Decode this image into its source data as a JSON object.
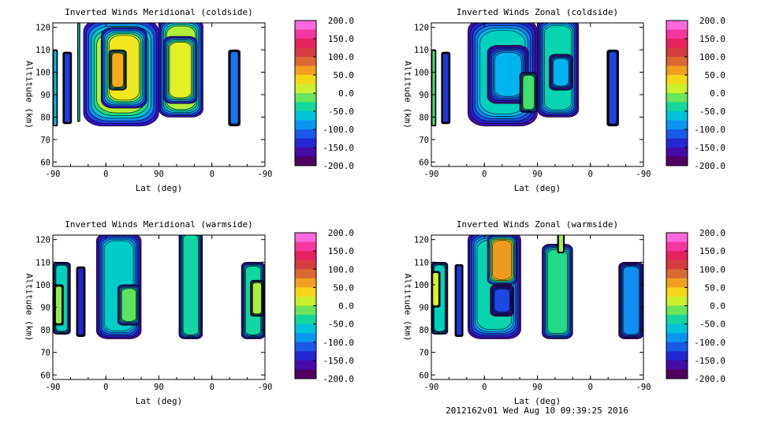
{
  "footer": "2012162v01 Wed Aug 10 09:39:25 2016",
  "chart_data": [
    {
      "type": "heatmap",
      "title": "Inverted Winds Meridional (coldside)",
      "xlabel": "Lat (deg)",
      "ylabel": "Altitude (km)",
      "x_ticks": [
        "-90",
        "0",
        "90",
        "0",
        "-90"
      ],
      "y_ticks": [
        "60",
        "70",
        "80",
        "90",
        "100",
        "110",
        "120"
      ],
      "ylim": [
        58,
        122
      ],
      "colorbar": {
        "min": -200.0,
        "max": 200.0,
        "tick_labels": [
          "200.0",
          "150.0",
          "100.0",
          "50.0",
          "0.0",
          "-50.0",
          "-100.0",
          "-150.0",
          "-200.0"
        ]
      },
      "blobs": [
        {
          "x0": -90,
          "x1": -82,
          "z0": 76,
          "z1": 110,
          "v": -70
        },
        {
          "x0": -73,
          "x1": -58,
          "z0": 77,
          "z1": 109,
          "v": -125
        },
        {
          "x0": -48,
          "x1": -44,
          "z0": 78,
          "z1": 128,
          "v": -50
        },
        {
          "x0": -38,
          "x1": 90,
          "z0": 76,
          "z1": 124,
          "v": 5
        },
        {
          "x0": -8,
          "x1": 70,
          "z0": 84,
          "z1": 120,
          "v": 30
        },
        {
          "x0": 5,
          "x1": 35,
          "z0": 92,
          "z1": 110,
          "v": 58
        },
        {
          "x0": 90,
          "x1": 165,
          "z0": 80,
          "z1": 124,
          "v": 2
        },
        {
          "x0": 98,
          "x1": 155,
          "z0": 86,
          "z1": 116,
          "v": 20
        },
        {
          "x0": 208,
          "x1": 228,
          "z0": 76,
          "z1": 110,
          "v": -100
        }
      ]
    },
    {
      "type": "heatmap",
      "title": "Inverted Winds Zonal (coldside)",
      "xlabel": "Lat (deg)",
      "ylabel": "Altitude (km)",
      "x_ticks": [
        "-90",
        "0",
        "90",
        "0",
        "-90"
      ],
      "y_ticks": [
        "60",
        "70",
        "80",
        "90",
        "100",
        "110",
        "120"
      ],
      "ylim": [
        58,
        122
      ],
      "colorbar": {
        "min": -200.0,
        "max": 200.0,
        "tick_labels": [
          "200.0",
          "150.0",
          "100.0",
          "50.0",
          "0.0",
          "-50.0",
          "-100.0",
          "-150.0",
          "-200.0"
        ]
      },
      "blobs": [
        {
          "x0": -90,
          "x1": -82,
          "z0": 76,
          "z1": 110,
          "v": -20
        },
        {
          "x0": -73,
          "x1": -58,
          "z0": 77,
          "z1": 109,
          "v": -130
        },
        {
          "x0": -28,
          "x1": 90,
          "z0": 76,
          "z1": 124,
          "v": -50
        },
        {
          "x0": 5,
          "x1": 75,
          "z0": 86,
          "z1": 112,
          "v": -75
        },
        {
          "x0": 60,
          "x1": 90,
          "z0": 82,
          "z1": 100,
          "v": -20
        },
        {
          "x0": 90,
          "x1": 160,
          "z0": 80,
          "z1": 124,
          "v": -45
        },
        {
          "x0": 110,
          "x1": 150,
          "z0": 92,
          "z1": 108,
          "v": -75
        },
        {
          "x0": 208,
          "x1": 228,
          "z0": 76,
          "z1": 110,
          "v": -120
        }
      ]
    },
    {
      "type": "heatmap",
      "title": "Inverted Winds Meridional (warmside)",
      "xlabel": "Lat (deg)",
      "ylabel": "Altitude (km)",
      "x_ticks": [
        "-90",
        "0",
        "90",
        "0",
        "-90"
      ],
      "y_ticks": [
        "60",
        "70",
        "80",
        "90",
        "100",
        "110",
        "120"
      ],
      "ylim": [
        58,
        122
      ],
      "colorbar": {
        "min": -200.0,
        "max": 200.0,
        "tick_labels": [
          "200.0",
          "150.0",
          "100.0",
          "50.0",
          "0.0",
          "-50.0",
          "-100.0",
          "-150.0",
          "-200.0"
        ]
      },
      "blobs": [
        {
          "x0": -90,
          "x1": -60,
          "z0": 78,
          "z1": 110,
          "v": -50
        },
        {
          "x0": -88,
          "x1": -72,
          "z0": 82,
          "z1": 100,
          "v": -5
        },
        {
          "x0": -50,
          "x1": -35,
          "z0": 77,
          "z1": 108,
          "v": -140
        },
        {
          "x0": -16,
          "x1": 60,
          "z0": 76,
          "z1": 123,
          "v": -55
        },
        {
          "x0": 20,
          "x1": 58,
          "z0": 82,
          "z1": 100,
          "v": -15
        },
        {
          "x0": 124,
          "x1": 164,
          "z0": 76,
          "z1": 124,
          "v": -40
        },
        {
          "x0": 230,
          "x1": 270,
          "z0": 76,
          "z1": 110,
          "v": -40
        },
        {
          "x0": 245,
          "x1": 268,
          "z0": 86,
          "z1": 102,
          "v": 0
        }
      ]
    },
    {
      "type": "heatmap",
      "title": "Inverted Winds Zonal (warmside)",
      "xlabel": "Lat (deg)",
      "ylabel": "Altitude (km)",
      "x_ticks": [
        "-90",
        "0",
        "90",
        "0",
        "-90"
      ],
      "y_ticks": [
        "60",
        "70",
        "80",
        "90",
        "100",
        "110",
        "120"
      ],
      "ylim": [
        58,
        122
      ],
      "colorbar": {
        "min": -200.0,
        "max": 200.0,
        "tick_labels": [
          "200.0",
          "150.0",
          "100.0",
          "50.0",
          "0.0",
          "-50.0",
          "-100.0",
          "-150.0",
          "-200.0"
        ]
      },
      "blobs": [
        {
          "x0": -90,
          "x1": -62,
          "z0": 78,
          "z1": 110,
          "v": -50
        },
        {
          "x0": -90,
          "x1": -75,
          "z0": 90,
          "z1": 106,
          "v": 20
        },
        {
          "x0": -50,
          "x1": -36,
          "z0": 77,
          "z1": 109,
          "v": -130
        },
        {
          "x0": -28,
          "x1": 62,
          "z0": 76,
          "z1": 124,
          "v": -45
        },
        {
          "x0": 5,
          "x1": 55,
          "z0": 100,
          "z1": 122,
          "v": 65
        },
        {
          "x0": 10,
          "x1": 50,
          "z0": 86,
          "z1": 100,
          "v": -120
        },
        {
          "x0": 98,
          "x1": 150,
          "z0": 76,
          "z1": 118,
          "v": -30
        },
        {
          "x0": 124,
          "x1": 136,
          "z0": 114,
          "z1": 124,
          "v": 0
        },
        {
          "x0": 228,
          "x1": 270,
          "z0": 76,
          "z1": 110,
          "v": -90
        }
      ]
    }
  ]
}
